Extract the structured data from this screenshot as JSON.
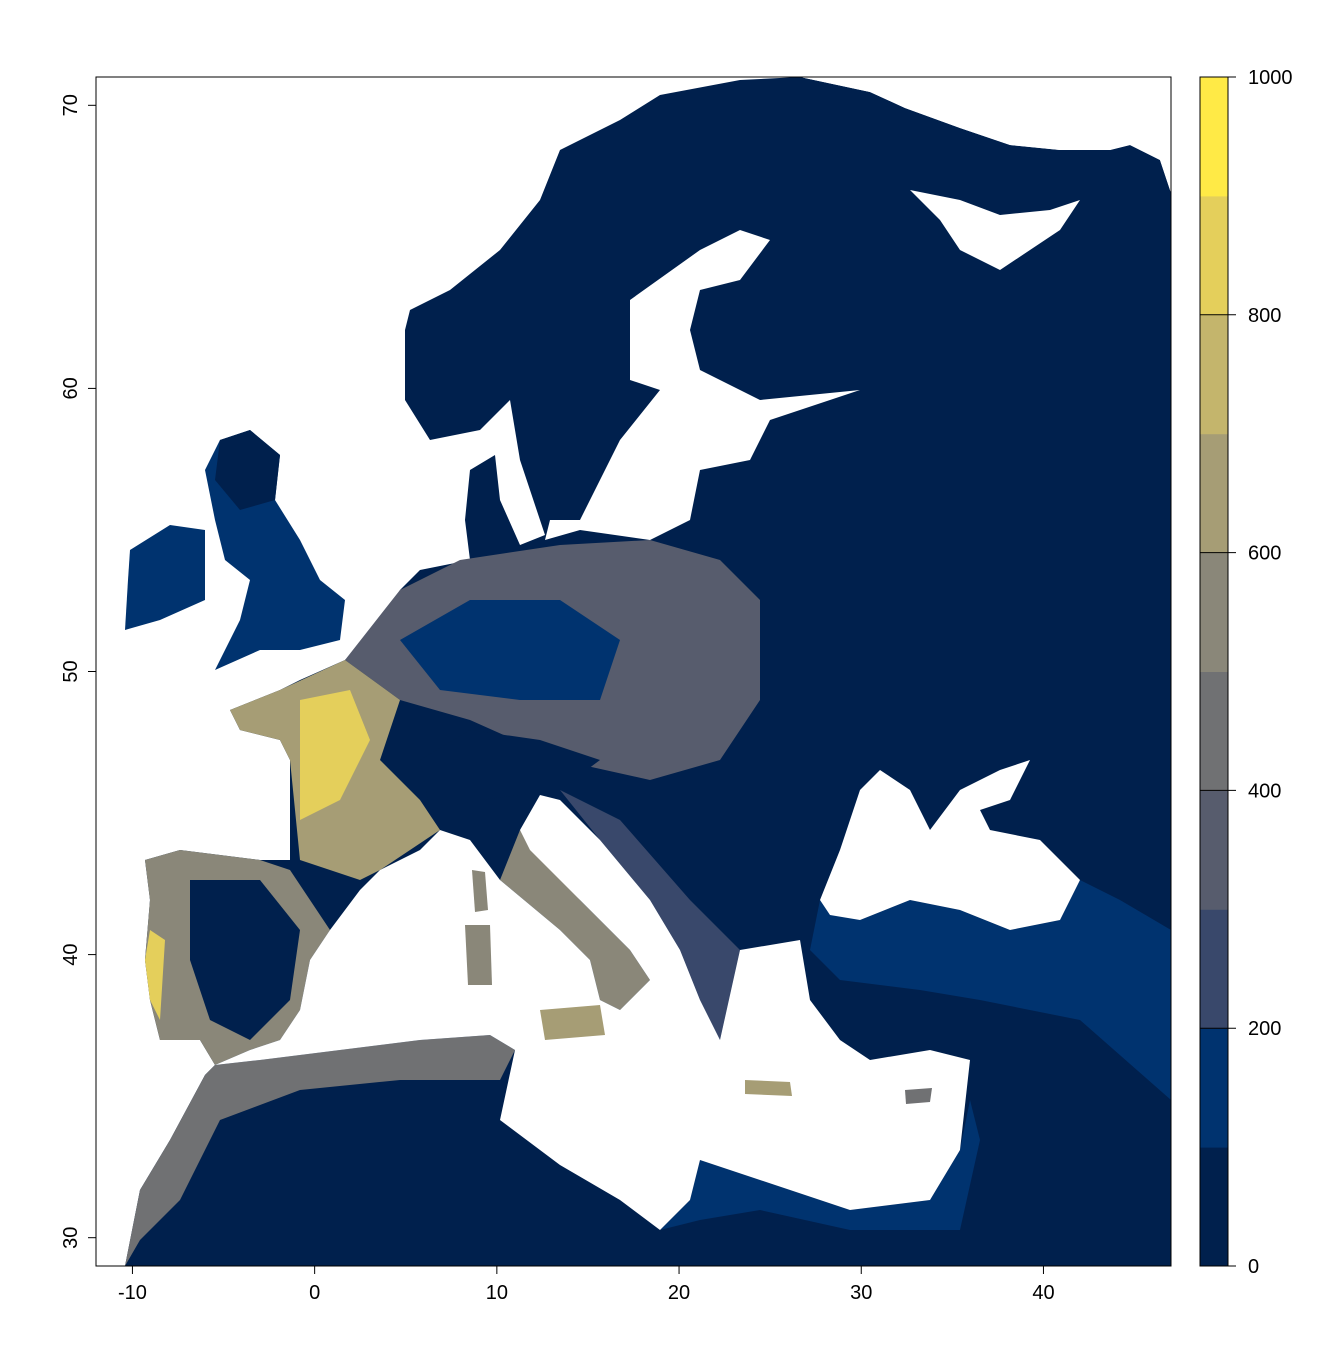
{
  "chart_data": {
    "type": "heatmap",
    "title": "",
    "xlabel": "",
    "ylabel": "",
    "xlim": [
      -12,
      47
    ],
    "ylim": [
      29,
      71
    ],
    "x_ticks": [
      -10,
      0,
      10,
      20,
      30,
      40
    ],
    "x_tick_labels": [
      "-10",
      "0",
      "10",
      "20",
      "30",
      "40"
    ],
    "y_ticks": [
      30,
      40,
      50,
      60,
      70
    ],
    "y_tick_labels": [
      "30",
      "40",
      "50",
      "60",
      "70"
    ],
    "grid": false,
    "legend": {
      "placement": "right",
      "breaks": [
        0,
        100,
        200,
        300,
        400,
        500,
        600,
        700,
        800,
        900,
        1000
      ],
      "colors": [
        "#00204D",
        "#00336F",
        "#39486B",
        "#575C6D",
        "#707173",
        "#8A8779",
        "#A69D75",
        "#C4B56C",
        "#E4CF5B",
        "#FFEA46"
      ],
      "ticks": [
        0,
        200,
        400,
        600,
        800,
        1000
      ],
      "tick_labels": [
        "0",
        "200",
        "400",
        "600",
        "800",
        "1000"
      ]
    },
    "na_color": "#FFFFFF"
  }
}
